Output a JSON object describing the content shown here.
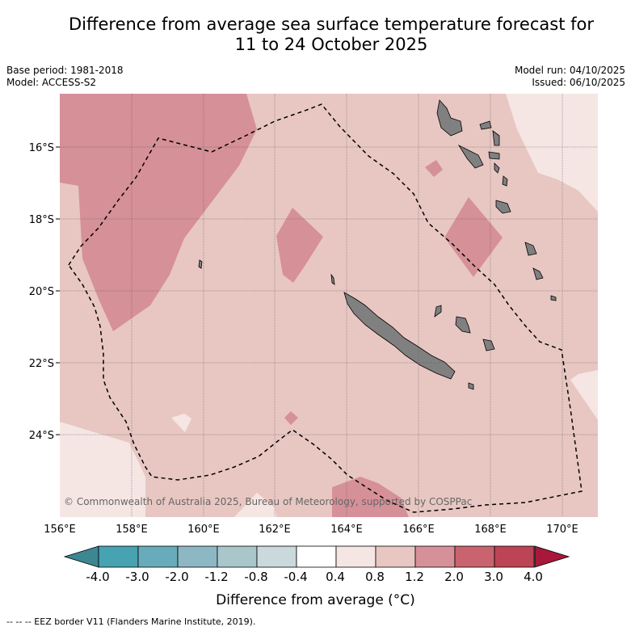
{
  "title": {
    "line1": "Difference from average sea surface temperature forecast for",
    "line2": "11 to 24 October 2025"
  },
  "meta": {
    "base_period": "Base period: 1981-2018",
    "model": "Model: ACCESS-S2",
    "model_run": "Model run: 04/10/2025",
    "issued": "Issued: 06/10/2025"
  },
  "map": {
    "lat_labels": [
      "16°S",
      "18°S",
      "20°S",
      "22°S",
      "24°S"
    ],
    "lon_labels": [
      "156°E",
      "158°E",
      "160°E",
      "162°E",
      "164°E",
      "166°E",
      "168°E",
      "170°E"
    ],
    "copyright": "© Commonwealth of Australia 2025, Bureau of Meteorology, supported by COSPPac",
    "colors": {
      "bin_0_4_0_8": "#f5e6e4",
      "bin_0_8_1_2": "#e8c7c2",
      "bin_1_2_2_0": "#d69098",
      "land": "#808080"
    }
  },
  "colorbar": {
    "labels": [
      "-4.0",
      "-3.0",
      "-2.0",
      "-1.2",
      "-0.8",
      "-0.4",
      "0.4",
      "0.8",
      "1.2",
      "2.0",
      "3.0",
      "4.0"
    ],
    "colors": [
      "#47a2b2",
      "#68acbc",
      "#8db8c3",
      "#a9c7cb",
      "#cad9db",
      "#ffffff",
      "#f5e6e4",
      "#e8c7c2",
      "#d69098",
      "#c9646f",
      "#bd4454"
    ],
    "under_color": "#3d8793",
    "over_color": "#a8183a",
    "title": "Difference from average (°C)"
  },
  "footnote": "--  --  -- EEZ border V11 (Flanders Marine Institute, 2019)."
}
